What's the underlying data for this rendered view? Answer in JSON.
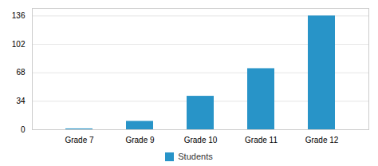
{
  "chart_data": {
    "type": "bar",
    "categories": [
      "Grade 7",
      "Grade 9",
      "Grade 10",
      "Grade 11",
      "Grade 12"
    ],
    "series": [
      {
        "name": "Students",
        "color": "#2894c8",
        "values": [
          1,
          10,
          40,
          73,
          136
        ]
      }
    ],
    "ylim": [
      0,
      145
    ],
    "yticks": [
      0,
      34,
      68,
      102,
      136
    ],
    "grid": true,
    "legend": "bottom"
  }
}
